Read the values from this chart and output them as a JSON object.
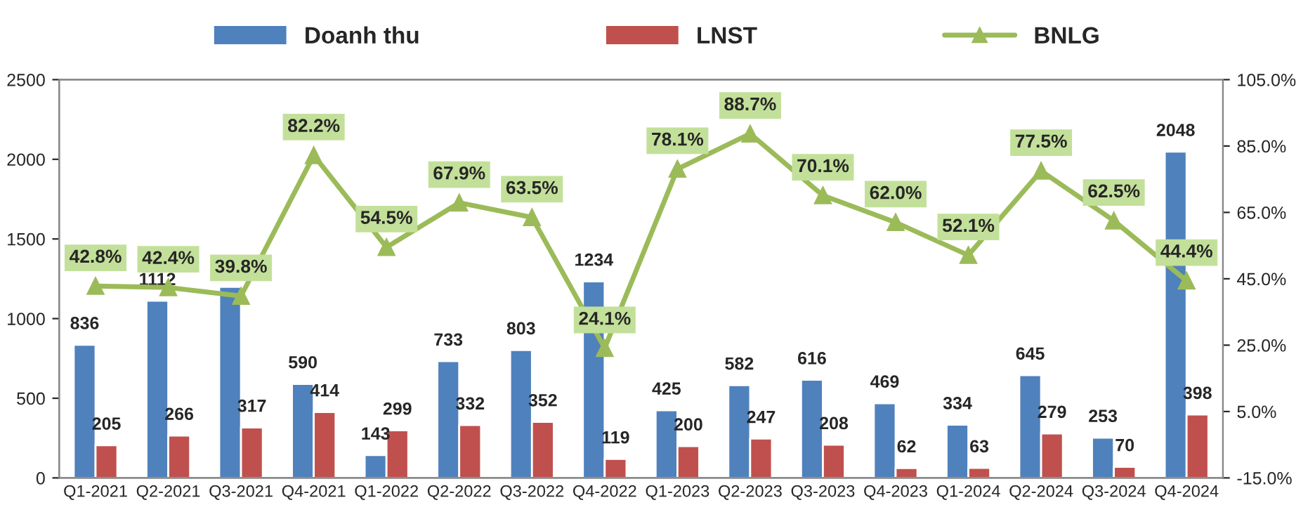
{
  "chart_data": {
    "type": "bar",
    "categories": [
      "Q1-2021",
      "Q2-2021",
      "Q3-2021",
      "Q4-2021",
      "Q1-2022",
      "Q2-2022",
      "Q3-2022",
      "Q4-2022",
      "Q1-2023",
      "Q2-2023",
      "Q3-2023",
      "Q4-2023",
      "Q1-2024",
      "Q2-2024",
      "Q3-2024",
      "Q4-2024"
    ],
    "series": [
      {
        "name": "Doanh thu",
        "color": "#4f81bd",
        "values": [
          836,
          1112,
          1200,
          590,
          143,
          733,
          803,
          1234,
          425,
          582,
          616,
          469,
          334,
          645,
          253,
          2048
        ],
        "value_labels": [
          "836",
          "1112",
          null,
          "590",
          "143",
          "733",
          "803",
          "1234",
          "425",
          "582",
          "616",
          "469",
          "334",
          "645",
          "253",
          "2048"
        ]
      },
      {
        "name": "LNST",
        "color": "#c0504d",
        "values": [
          205,
          266,
          317,
          414,
          299,
          332,
          352,
          119,
          200,
          247,
          208,
          62,
          63,
          279,
          70,
          398
        ],
        "value_labels": [
          "205",
          "266",
          "317",
          "414",
          "299",
          "332",
          "352",
          "119",
          "200",
          "247",
          "208",
          "62",
          "63",
          "279",
          "70",
          "398"
        ]
      },
      {
        "name": "BNLG",
        "type": "line",
        "axis": "y2",
        "color": "#9bbb59",
        "marker": "triangle",
        "values": [
          42.8,
          42.4,
          39.8,
          82.2,
          54.5,
          67.9,
          63.5,
          24.1,
          78.1,
          88.7,
          70.1,
          62.0,
          52.1,
          77.5,
          62.5,
          44.4
        ],
        "value_labels": [
          "42.8%",
          "42.4%",
          "39.8%",
          "82.2%",
          "54.5%",
          "67.9%",
          "63.5%",
          "24.1%",
          "78.1%",
          "88.7%",
          "70.1%",
          "62.0%",
          "52.1%",
          "77.5%",
          "62.5%",
          "44.4%"
        ]
      }
    ],
    "ylim": [
      0,
      2500
    ],
    "yticks": [
      0,
      500,
      1000,
      1500,
      2000,
      2500
    ],
    "y2lim": [
      -15,
      105
    ],
    "y2ticks": [
      {
        "value": -15,
        "label": "-15.0%"
      },
      {
        "value": 5,
        "label": "5.0%"
      },
      {
        "value": 25,
        "label": "25.0%"
      },
      {
        "value": 45,
        "label": "45.0%"
      },
      {
        "value": 65,
        "label": "65.0%"
      },
      {
        "value": 85,
        "label": "85.0%"
      },
      {
        "value": 105,
        "label": "105.0%"
      }
    ],
    "grid": false,
    "legend": "top"
  }
}
